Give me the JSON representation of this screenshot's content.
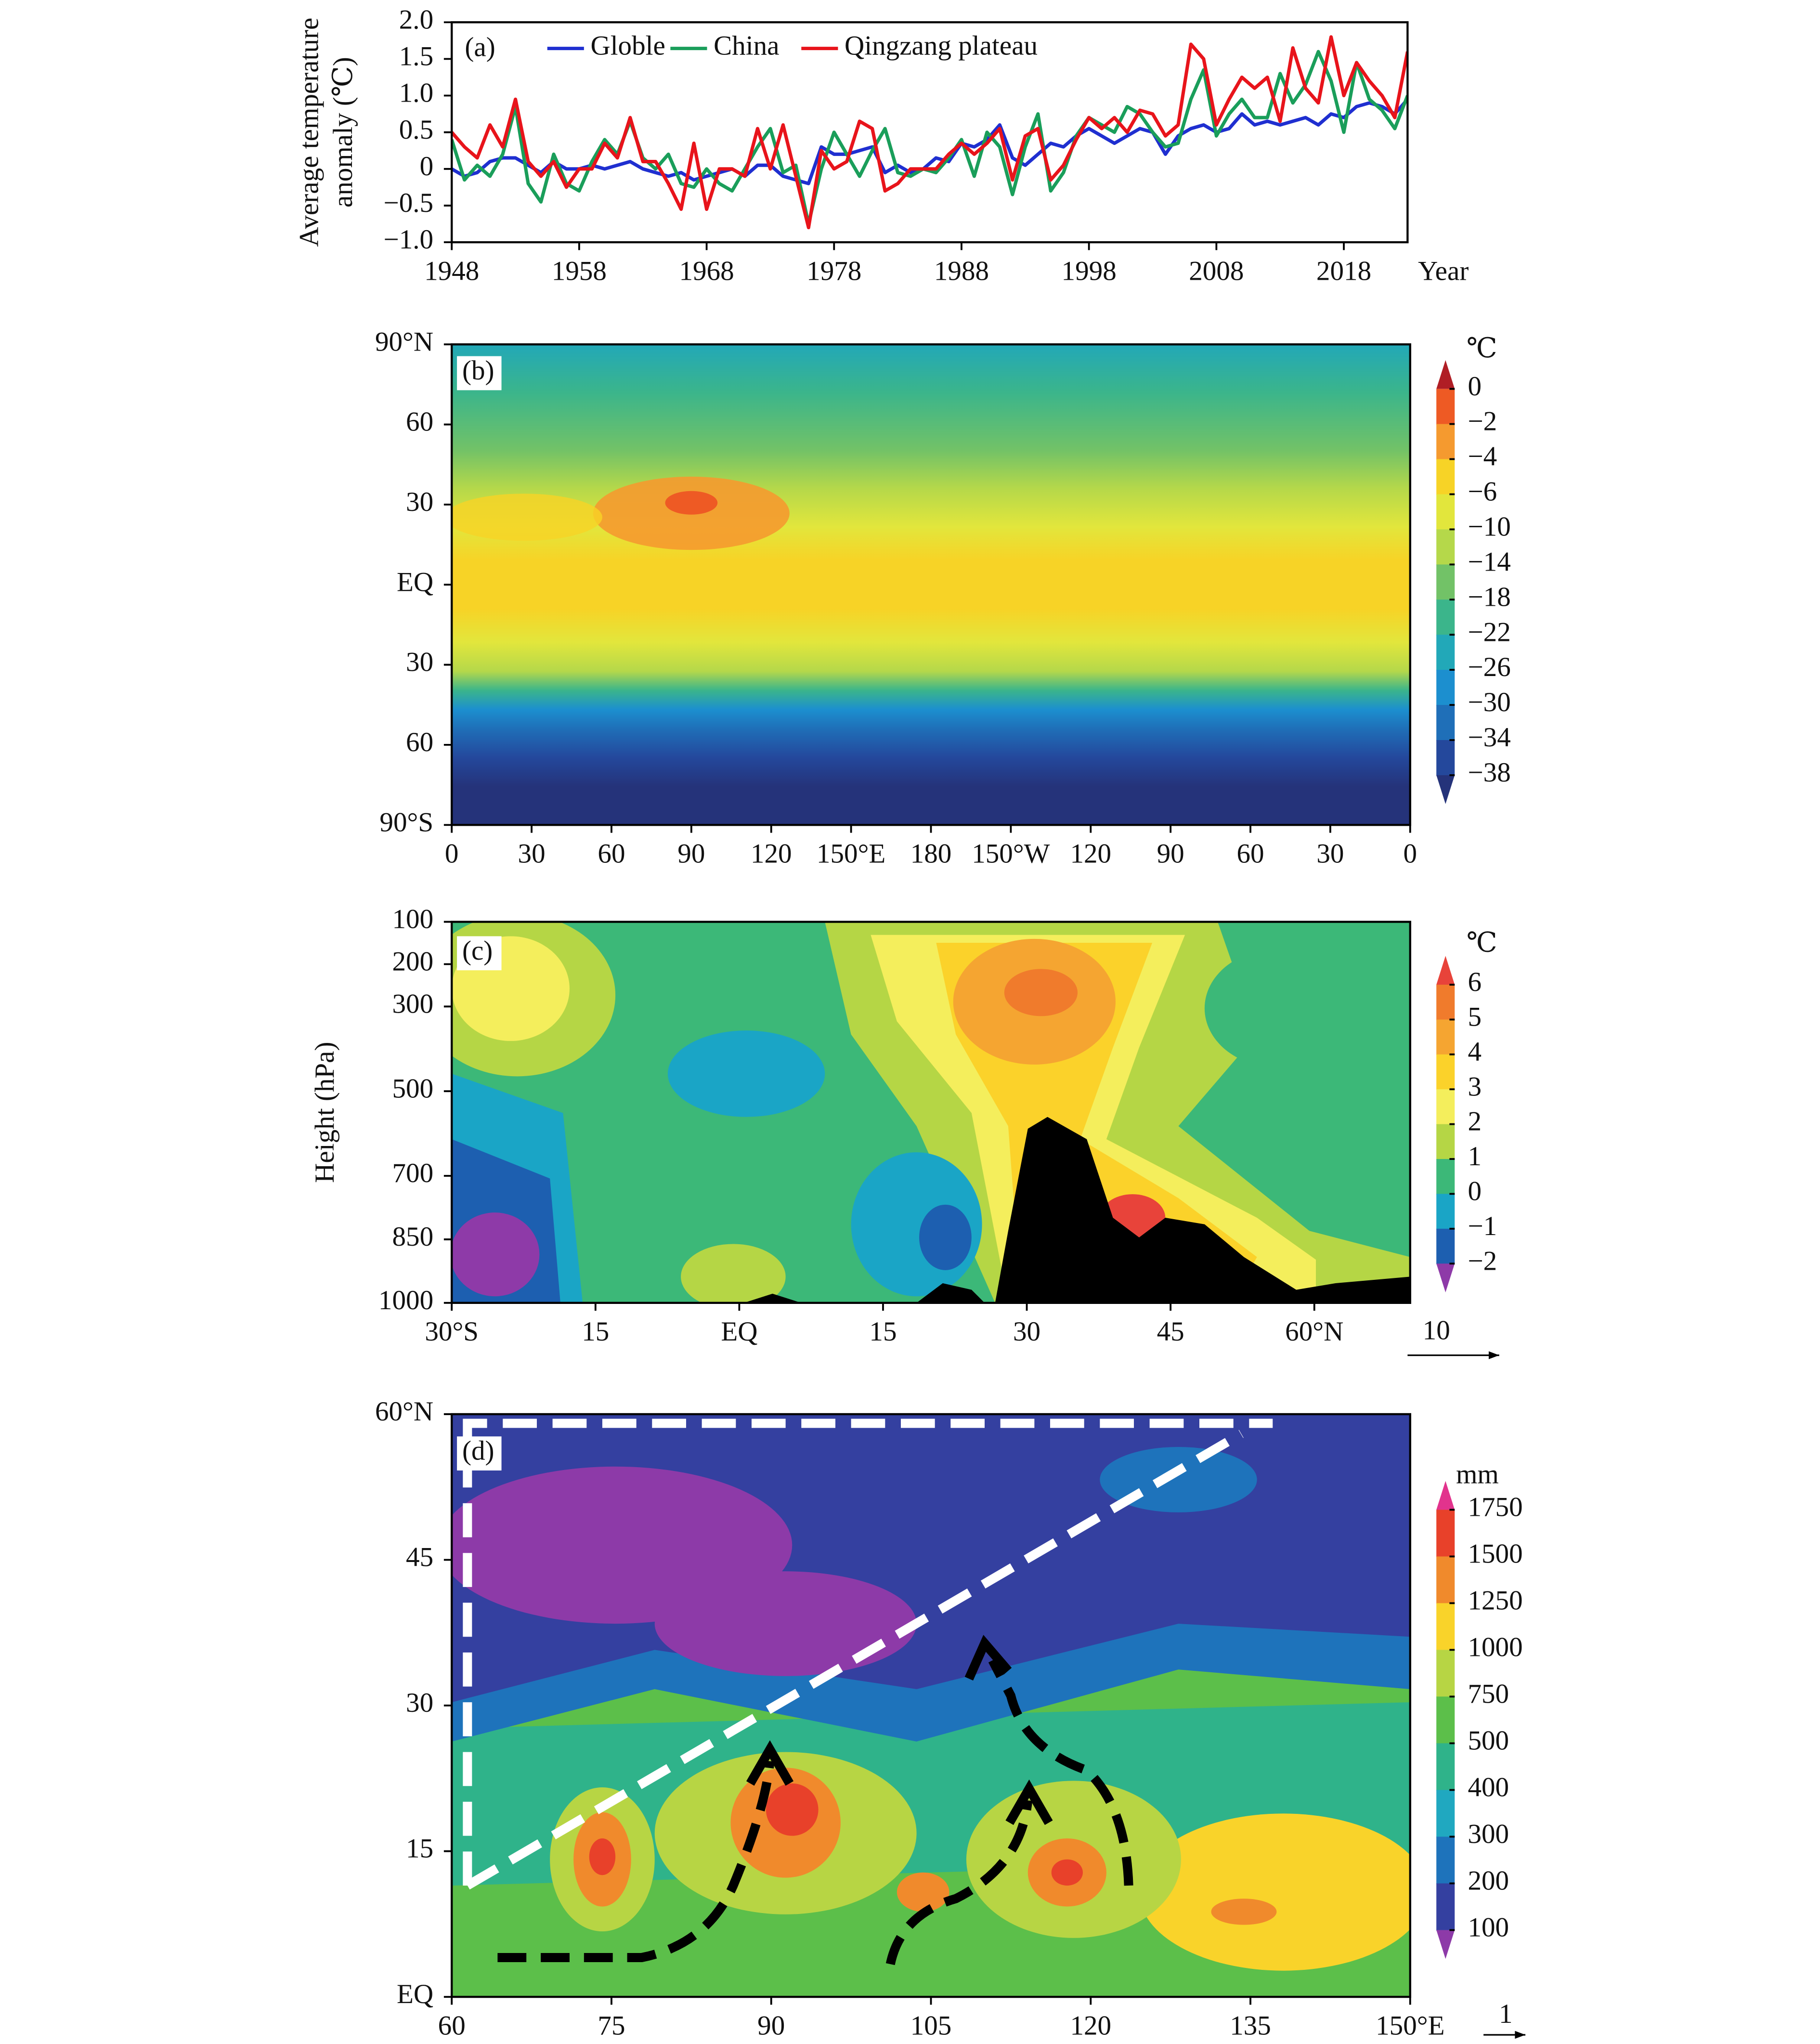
{
  "chart_data": [
    {
      "type": "line",
      "panel_label": "(a)",
      "y_label": [
        "Average temperature",
        "anomaly (℃)"
      ],
      "x_label": "Year",
      "x": [
        1948,
        1949,
        1950,
        1951,
        1952,
        1953,
        1954,
        1955,
        1956,
        1957,
        1958,
        1959,
        1960,
        1961,
        1962,
        1963,
        1964,
        1965,
        1966,
        1967,
        1968,
        1969,
        1970,
        1971,
        1972,
        1973,
        1974,
        1975,
        1976,
        1977,
        1978,
        1979,
        1980,
        1981,
        1982,
        1983,
        1984,
        1985,
        1986,
        1987,
        1988,
        1989,
        1990,
        1991,
        1992,
        1993,
        1994,
        1995,
        1996,
        1997,
        1998,
        1999,
        2000,
        2001,
        2002,
        2003,
        2004,
        2005,
        2006,
        2007,
        2008,
        2009,
        2010,
        2011,
        2012,
        2013,
        2014,
        2015,
        2016,
        2017,
        2018,
        2019,
        2020,
        2021,
        2022,
        2023
      ],
      "series": [
        {
          "name": "Globle",
          "color": "#1f2fd0",
          "values": [
            0.0,
            -0.1,
            -0.05,
            0.1,
            0.15,
            0.15,
            0.05,
            -0.05,
            0.1,
            0.0,
            0.0,
            0.05,
            0.0,
            0.05,
            0.1,
            0.0,
            -0.05,
            -0.1,
            -0.05,
            -0.15,
            -0.1,
            -0.05,
            0.0,
            -0.1,
            0.05,
            0.05,
            -0.1,
            -0.15,
            -0.2,
            0.3,
            0.2,
            0.2,
            0.25,
            0.3,
            -0.05,
            0.05,
            -0.05,
            0.0,
            0.15,
            0.1,
            0.35,
            0.3,
            0.4,
            0.6,
            0.15,
            0.05,
            0.2,
            0.35,
            0.3,
            0.45,
            0.55,
            0.45,
            0.35,
            0.45,
            0.55,
            0.5,
            0.2,
            0.45,
            0.55,
            0.6,
            0.5,
            0.55,
            0.75,
            0.6,
            0.65,
            0.6,
            0.65,
            0.7,
            0.6,
            0.75,
            0.7,
            0.85,
            0.9,
            0.85,
            0.75,
            0.95
          ]
        },
        {
          "name": "China",
          "color": "#1a9e5a",
          "values": [
            0.4,
            -0.15,
            0.05,
            -0.1,
            0.2,
            0.85,
            -0.2,
            -0.45,
            0.2,
            -0.2,
            -0.3,
            0.1,
            0.4,
            0.2,
            0.65,
            0.15,
            0.0,
            0.2,
            -0.2,
            -0.25,
            0.0,
            -0.2,
            -0.3,
            0.0,
            0.3,
            0.55,
            -0.05,
            0.05,
            -0.75,
            0.0,
            0.5,
            0.2,
            -0.1,
            0.25,
            0.55,
            -0.05,
            -0.1,
            0.0,
            -0.05,
            0.15,
            0.4,
            -0.1,
            0.5,
            0.3,
            -0.35,
            0.3,
            0.75,
            -0.3,
            -0.05,
            0.45,
            0.7,
            0.6,
            0.5,
            0.85,
            0.75,
            0.5,
            0.3,
            0.35,
            0.95,
            1.35,
            0.45,
            0.75,
            0.95,
            0.7,
            0.7,
            1.3,
            0.9,
            1.15,
            1.6,
            1.2,
            0.5,
            1.45,
            0.95,
            0.8,
            0.55,
            1.0
          ]
        },
        {
          "name": "Qingzang plateau",
          "color": "#e8141b",
          "values": [
            0.5,
            0.3,
            0.15,
            0.6,
            0.3,
            0.95,
            0.1,
            -0.1,
            0.1,
            -0.25,
            0.0,
            0.0,
            0.35,
            0.15,
            0.7,
            0.1,
            0.1,
            -0.2,
            -0.55,
            0.35,
            -0.55,
            0.0,
            0.0,
            -0.1,
            0.55,
            0.0,
            0.6,
            -0.1,
            -0.8,
            0.25,
            0.0,
            0.1,
            0.65,
            0.55,
            -0.3,
            -0.2,
            0.0,
            0.0,
            0.0,
            0.2,
            0.35,
            0.2,
            0.35,
            0.55,
            -0.15,
            0.45,
            0.55,
            -0.15,
            0.05,
            0.4,
            0.7,
            0.55,
            0.7,
            0.5,
            0.8,
            0.75,
            0.45,
            0.6,
            1.7,
            1.5,
            0.6,
            0.95,
            1.25,
            1.1,
            1.25,
            0.65,
            1.65,
            1.1,
            0.9,
            1.8,
            1.0,
            1.45,
            1.2,
            1.0,
            0.7,
            1.6
          ]
        }
      ],
      "xlim": [
        1948,
        2023
      ],
      "ylim": [
        -1,
        2
      ],
      "xticks": [
        1948,
        1958,
        1968,
        1978,
        1988,
        1998,
        2008,
        2018
      ],
      "yticks": [
        {
          "value": 2,
          "label": "2.0"
        },
        {
          "value": 1.5,
          "label": "1.5"
        },
        {
          "value": 1,
          "label": "1.0"
        },
        {
          "value": 0.5,
          "label": "0.5"
        },
        0,
        {
          "value": -0.5,
          "label": "−0.5"
        },
        {
          "value": -1,
          "label": "−1.0"
        }
      ]
    },
    {
      "type": "map",
      "panel_label": "(b)",
      "xlim": [
        0,
        360
      ],
      "ylim": [
        -90,
        90
      ],
      "xticks": [
        0,
        30,
        60,
        90,
        120,
        {
          "value": 150,
          "label": "150°E"
        },
        180,
        {
          "value": 210,
          "label": "150°W"
        },
        {
          "value": 240,
          "label": "120"
        },
        {
          "value": 270,
          "label": "90"
        },
        {
          "value": 300,
          "label": "60"
        },
        {
          "value": 330,
          "label": "30"
        },
        {
          "value": 360,
          "label": "0"
        }
      ],
      "yticks": [
        {
          "value": 90,
          "label": "90°N"
        },
        60,
        30,
        {
          "value": 0,
          "label": "EQ"
        },
        {
          "value": -30,
          "label": "30"
        },
        {
          "value": -60,
          "label": "60"
        },
        {
          "value": -90,
          "label": "90°S"
        }
      ],
      "colorbar": {
        "unit": "℃",
        "levels": [
          0,
          {
            "value": -2,
            "label": "−2"
          },
          {
            "value": -4,
            "label": "−4"
          },
          {
            "value": -6,
            "label": "−6"
          },
          {
            "value": -10,
            "label": "−10"
          },
          {
            "value": -14,
            "label": "−14"
          },
          {
            "value": -18,
            "label": "−18"
          },
          {
            "value": -22,
            "label": "−22"
          },
          {
            "value": -26,
            "label": "−26"
          },
          {
            "value": -30,
            "label": "−30"
          },
          {
            "value": -34,
            "label": "−34"
          },
          {
            "value": -38,
            "label": "−38"
          }
        ],
        "colors": [
          "#b01e25",
          "#ee5a24",
          "#f59a2f",
          "#f7d326",
          "#e2e63c",
          "#b5d84a",
          "#72c267",
          "#3bb58b",
          "#22a8b8",
          "#1c8fcf",
          "#1f6fb8",
          "#24489c",
          "#25337a"
        ]
      }
    },
    {
      "type": "cross_section",
      "panel_label": "(c)",
      "y_label": "Height (hPa)",
      "xlim": [
        -30,
        70
      ],
      "ylim": [
        1000,
        100
      ],
      "xticks": [
        {
          "value": -30,
          "label": "30°S"
        },
        {
          "value": -15,
          "label": "15"
        },
        {
          "value": 0,
          "label": "EQ"
        },
        15,
        30,
        45,
        {
          "value": 60,
          "label": "60°N"
        }
      ],
      "yticks": [
        100,
        200,
        300,
        500,
        700,
        850,
        1000
      ],
      "colorbar": {
        "unit": "℃",
        "levels": [
          6,
          5,
          4,
          3,
          2,
          1,
          0,
          {
            "value": -1,
            "label": "−1"
          },
          {
            "value": -2,
            "label": "−2"
          }
        ],
        "colors": [
          "#e8433a",
          "#f07b2c",
          "#f5a531",
          "#fbd22a",
          "#f4ee5c",
          "#b5d645",
          "#3cb878",
          "#1aa5c6",
          "#1d5fb0",
          "#8e3aa8"
        ]
      },
      "vector_scale": 10
    },
    {
      "type": "map",
      "panel_label": "(d)",
      "xlim": [
        60,
        150
      ],
      "ylim": [
        0,
        60
      ],
      "xticks": [
        60,
        75,
        90,
        105,
        120,
        135,
        {
          "value": 150,
          "label": "150°E"
        }
      ],
      "yticks": [
        {
          "value": 60,
          "label": "60°N"
        },
        45,
        30,
        15,
        {
          "value": 0,
          "label": "EQ"
        }
      ],
      "colorbar": {
        "unit": "mm",
        "levels": [
          1750,
          1500,
          1250,
          1000,
          750,
          500,
          400,
          300,
          200,
          100
        ],
        "colors": [
          "#e2338d",
          "#e8412a",
          "#f08a2c",
          "#f9d32a",
          "#b7d544",
          "#5cbf4a",
          "#2fb38a",
          "#20a8c0",
          "#1e73bb",
          "#3440a0",
          "#8d3aa8"
        ]
      },
      "vector_scale": 1
    }
  ]
}
